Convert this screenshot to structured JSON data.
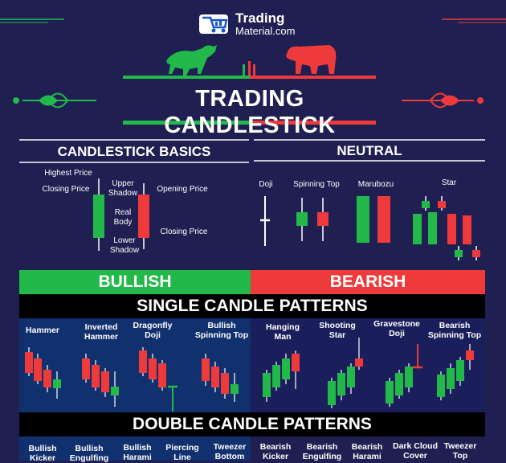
{
  "logo": {
    "brand": "Trading",
    "domain": "Material.com"
  },
  "title": "TRADING CANDLESTICK",
  "basics": {
    "heading": "CANDLESTICK BASICS",
    "highest_price": "Highest Price",
    "closing_price_left": "Closing Price",
    "upper_shadow": "Upper Shadow",
    "real_body": "Real Body",
    "lower_shadow": "Lower Shadow",
    "opening_price": "Opening Price",
    "closing_price_right": "Closing Price"
  },
  "neutral": {
    "heading": "NEUTRAL",
    "doji": "Doji",
    "spinning_top": "Spinning Top",
    "marubozu": "Marubozu",
    "star": "Star"
  },
  "bullish_label": "BULLISH",
  "bearish_label": "BEARISH",
  "single_heading": "SINGLE CANDLE PATTERNS",
  "single": {
    "hammer": "Hammer",
    "inverted_hammer": "Inverted Hammer",
    "dragonfly_doji": "Dragonfly Doji",
    "bullish_spinning_top": "Bullish Spinning Top",
    "hanging_man": "Hanging Man",
    "shooting_star": "Shooting Star",
    "gravestone_doji": "Gravestone Doji",
    "bearish_spinning_top": "Bearish Spinning Top"
  },
  "double_heading": "DOUBLE CANDLE PATTERNS",
  "double": {
    "bullish_kicker": "Bullish Kicker",
    "bullish_engulfing": "Bullish Engulfing",
    "bullish_harami": "Bullish Harami",
    "piercing_line": "Piercing Line",
    "tweezer_bottom": "Tweezer Bottom",
    "bearish_kicker": "Bearish Kicker",
    "bearish_engulfing": "Bearish Engulfing",
    "bearish_harami": "Bearish Harami",
    "dark_cloud_cover": "Dark Cloud Cover",
    "tweezer_top": "Tweezer Top"
  },
  "colors": {
    "bull": "#22b94a",
    "bear": "#ee3a3a",
    "bg": "#1f1f52",
    "panel": "#102a6b"
  }
}
